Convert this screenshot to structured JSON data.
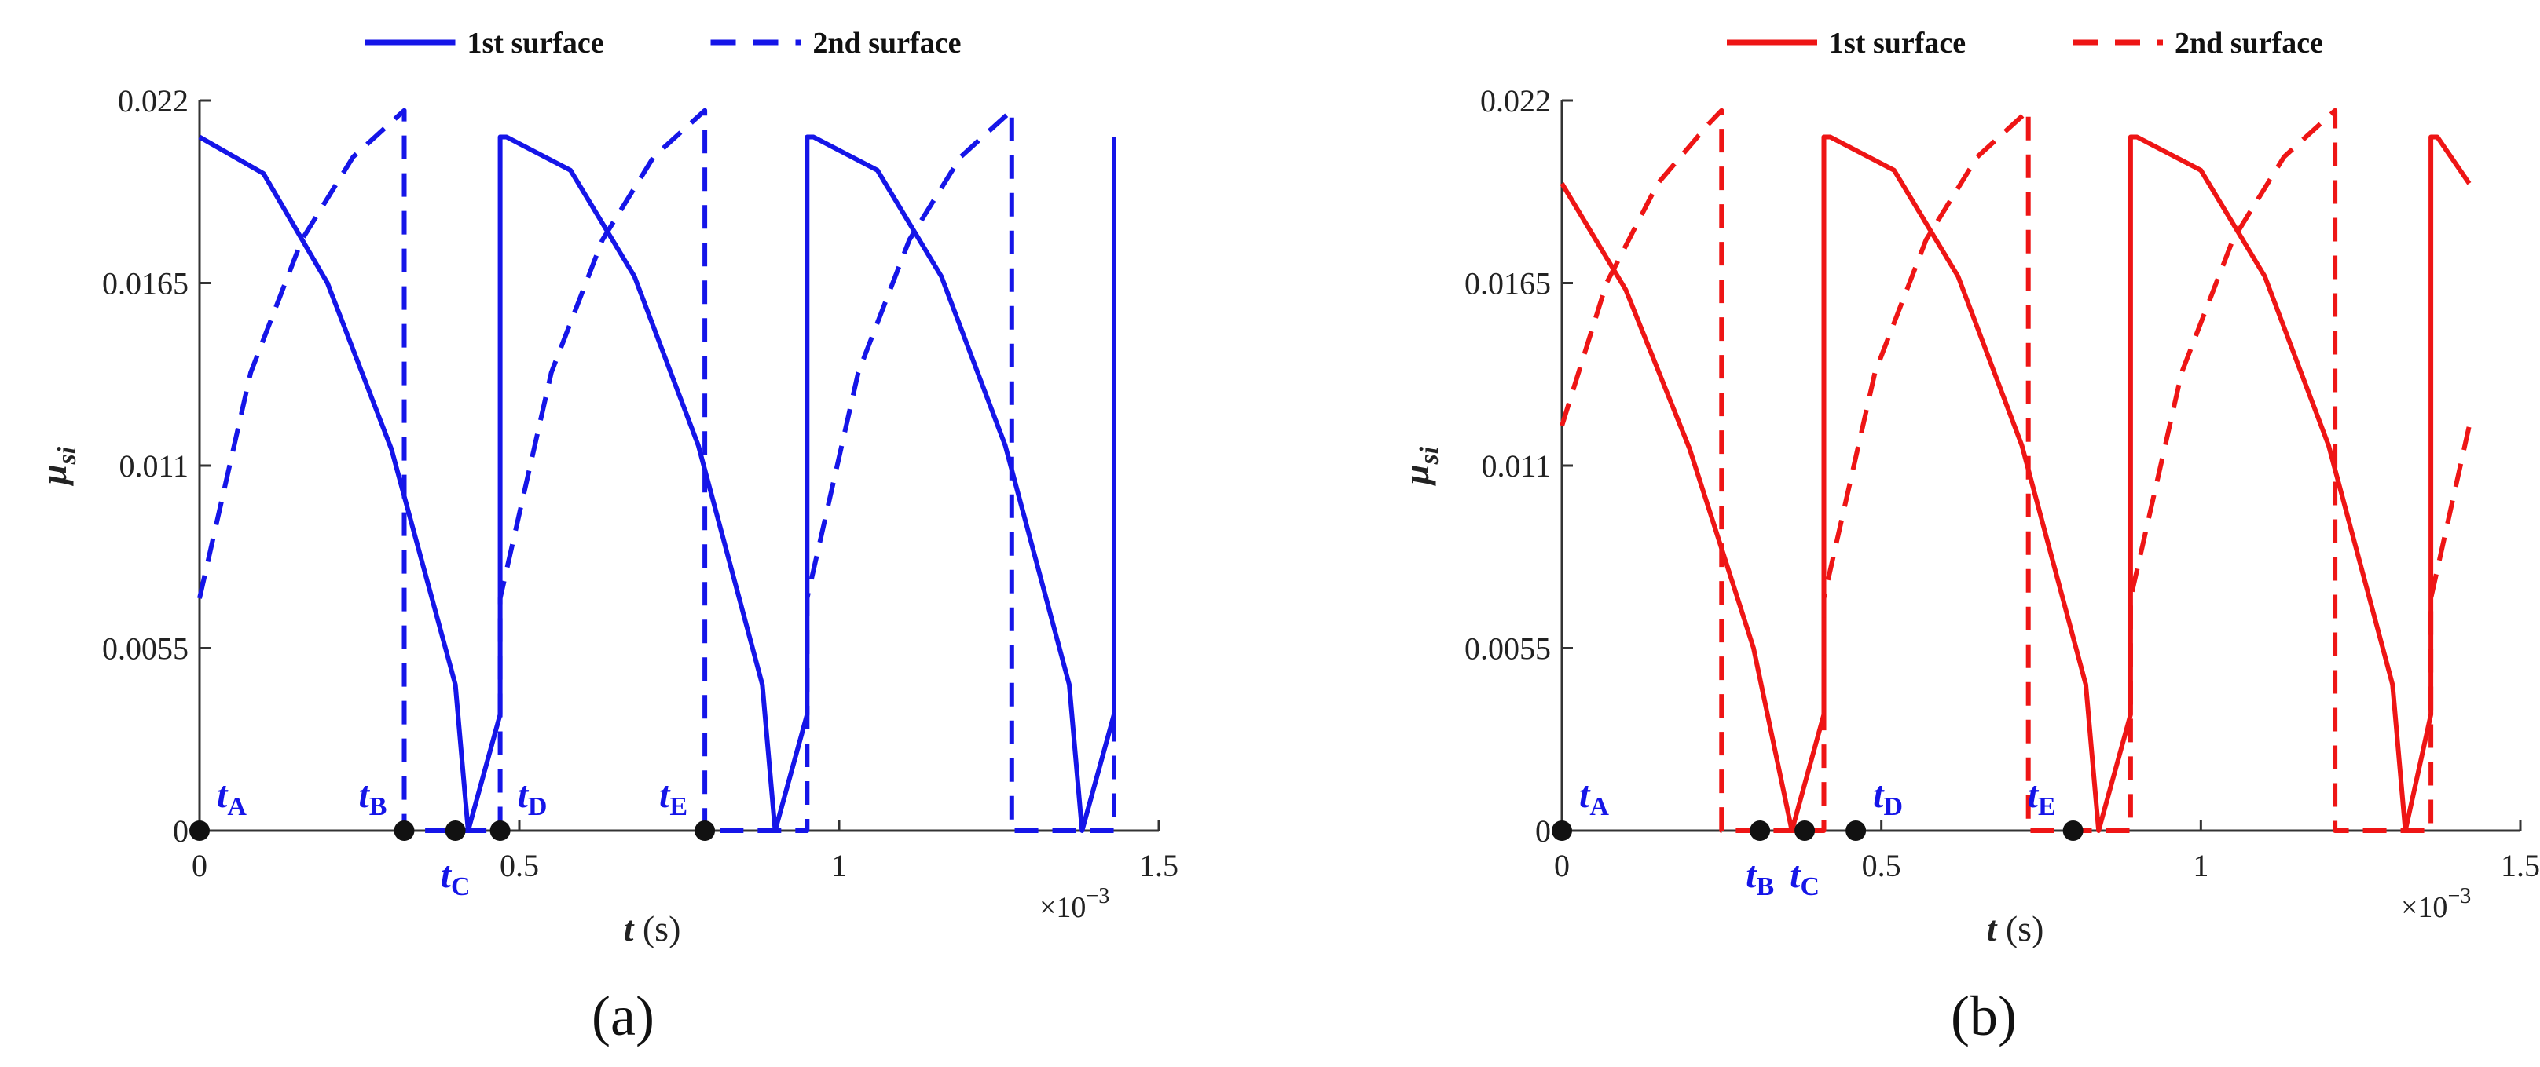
{
  "chart_data": [
    {
      "type": "line",
      "panel_label": "(a)",
      "color": "#1515e8",
      "xlabel_var": "t",
      "xlabel_unit": " (s)",
      "ylabel_main": "μ",
      "ylabel_sub": "si",
      "x_multiplier": "×10",
      "x_multiplier_exp": "−3",
      "xlim": [
        0,
        1.5
      ],
      "ylim": [
        0,
        0.022
      ],
      "xticks": [
        0,
        0.5,
        1,
        1.5
      ],
      "xtick_labels": [
        "0",
        "0.5",
        "1",
        "1.5"
      ],
      "yticks": [
        0,
        0.0055,
        0.011,
        0.0165,
        0.022
      ],
      "ytick_labels": [
        "0",
        "0.0055",
        "0.011",
        "0.0165",
        "0.022"
      ],
      "legend_position": "top-center",
      "series": [
        {
          "name": "1st surface",
          "style": "solid",
          "x": [
            0,
            0.1,
            0.2,
            0.3,
            0.4,
            0.42,
            0.47,
            0.47,
            0.48,
            0.58,
            0.68,
            0.78,
            0.88,
            0.9,
            0.95,
            0.95,
            0.96,
            1.06,
            1.16,
            1.26,
            1.36,
            1.38,
            1.43,
            1.43
          ],
          "values": [
            0.0209,
            0.0198,
            0.0165,
            0.0115,
            0.0044,
            0,
            0.0035,
            0.0209,
            0.0209,
            0.0199,
            0.0167,
            0.0116,
            0.0044,
            0,
            0.0035,
            0.0209,
            0.0209,
            0.0199,
            0.0167,
            0.0116,
            0.0044,
            0,
            0.0035,
            0.0209
          ]
        },
        {
          "name": "2nd surface",
          "style": "dashed",
          "x": [
            0,
            0.08,
            0.16,
            0.24,
            0.32,
            0.32,
            0.47,
            0.47,
            0.55,
            0.63,
            0.71,
            0.79,
            0.79,
            0.95,
            0.95,
            1.03,
            1.11,
            1.19,
            1.27,
            1.27,
            1.43,
            1.43
          ],
          "values": [
            0.007,
            0.0138,
            0.0178,
            0.0203,
            0.0217,
            0,
            0,
            0.007,
            0.0138,
            0.0178,
            0.0203,
            0.0217,
            0,
            0,
            0.007,
            0.0138,
            0.0178,
            0.0203,
            0.0217,
            0,
            0,
            0.007
          ]
        }
      ],
      "markers": [
        {
          "letter": "A",
          "x": 0,
          "label_pos": "above-right"
        },
        {
          "letter": "B",
          "x": 0.32,
          "label_pos": "above-left"
        },
        {
          "letter": "C",
          "x": 0.4,
          "label_pos": "below"
        },
        {
          "letter": "D",
          "x": 0.47,
          "label_pos": "above-right"
        },
        {
          "letter": "E",
          "x": 0.79,
          "label_pos": "above-left"
        }
      ]
    },
    {
      "type": "line",
      "panel_label": "(b)",
      "color": "#ee1515",
      "xlabel_var": "t",
      "xlabel_unit": " (s)",
      "ylabel_main": "μ",
      "ylabel_sub": "si",
      "x_multiplier": "×10",
      "x_multiplier_exp": "−3",
      "xlim": [
        0,
        1.5
      ],
      "ylim": [
        0,
        0.022
      ],
      "xticks": [
        0,
        0.5,
        1,
        1.5
      ],
      "xtick_labels": [
        "0",
        "0.5",
        "1",
        "1.5"
      ],
      "yticks": [
        0,
        0.0055,
        0.011,
        0.0165,
        0.022
      ],
      "ytick_labels": [
        "0",
        "0.0055",
        "0.011",
        "0.0165",
        "0.022"
      ],
      "legend_position": "top-center",
      "series": [
        {
          "name": "1st surface",
          "style": "solid",
          "x": [
            0,
            0.1,
            0.2,
            0.3,
            0.36,
            0.41,
            0.41,
            0.42,
            0.52,
            0.62,
            0.72,
            0.82,
            0.84,
            0.89,
            0.89,
            0.9,
            1.0,
            1.1,
            1.2,
            1.3,
            1.32,
            1.36,
            1.36,
            1.37,
            1.42
          ],
          "values": [
            0.0195,
            0.0163,
            0.0115,
            0.0055,
            0,
            0.0035,
            0.0209,
            0.0209,
            0.0199,
            0.0167,
            0.0116,
            0.0044,
            0,
            0.0035,
            0.0209,
            0.0209,
            0.0199,
            0.0167,
            0.0116,
            0.0044,
            0,
            0.0035,
            0.0209,
            0.0209,
            0.0195
          ]
        },
        {
          "name": "2nd surface",
          "style": "dashed",
          "x": [
            0,
            0.07,
            0.15,
            0.23,
            0.25,
            0.25,
            0.41,
            0.41,
            0.49,
            0.57,
            0.65,
            0.73,
            0.73,
            0.89,
            0.89,
            0.97,
            1.05,
            1.13,
            1.21,
            1.21,
            1.36,
            1.36,
            1.42
          ],
          "values": [
            0.0122,
            0.0165,
            0.0195,
            0.0213,
            0.0217,
            0,
            0,
            0.007,
            0.0138,
            0.0178,
            0.0203,
            0.0217,
            0,
            0,
            0.007,
            0.0138,
            0.0178,
            0.0203,
            0.0217,
            0,
            0,
            0.007,
            0.0122
          ]
        }
      ],
      "markers": [
        {
          "letter": "A",
          "x": 0,
          "label_pos": "above-right"
        },
        {
          "letter": "B",
          "x": 0.31,
          "label_pos": "below"
        },
        {
          "letter": "C",
          "x": 0.38,
          "label_pos": "below"
        },
        {
          "letter": "D",
          "x": 0.46,
          "label_pos": "above-right"
        },
        {
          "letter": "E",
          "x": 0.8,
          "label_pos": "above-left"
        }
      ]
    }
  ]
}
